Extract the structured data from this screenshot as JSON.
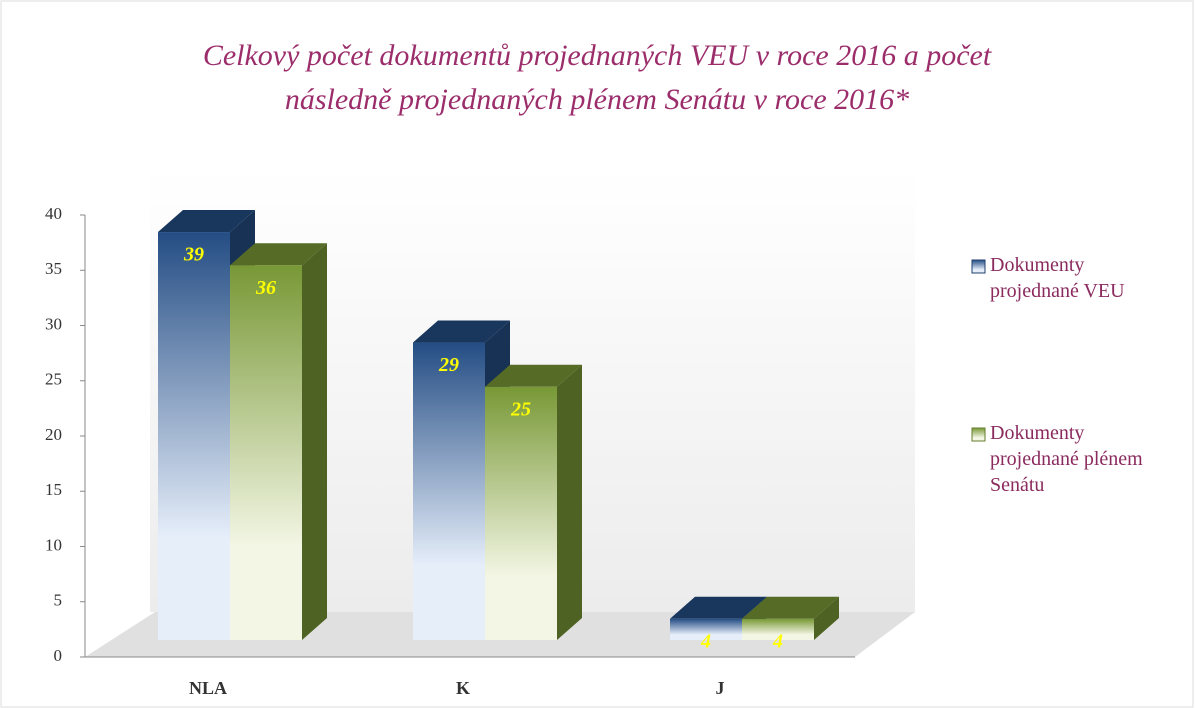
{
  "chart_data": {
    "type": "bar3d",
    "title": [
      "Celkový počet dokumentů projednaných VEU v roce 2016 a počet",
      "následně projednaných plénem Senátu v roce 2016*"
    ],
    "categories": [
      "NLA",
      "K",
      "J"
    ],
    "series": [
      {
        "name": "Dokumenty projednané VEU",
        "color": "#2a5a9b",
        "values": [
          39,
          29,
          4
        ]
      },
      {
        "name": "Dokumenty projednané plénem Senátu",
        "color": "#8db33f",
        "values": [
          36,
          25,
          4
        ]
      }
    ],
    "ylim": [
      0,
      40
    ],
    "yticks": [
      0,
      5,
      10,
      15,
      20,
      25,
      30,
      35,
      40
    ],
    "legend": "right",
    "value_label_color": "#ffff00"
  }
}
